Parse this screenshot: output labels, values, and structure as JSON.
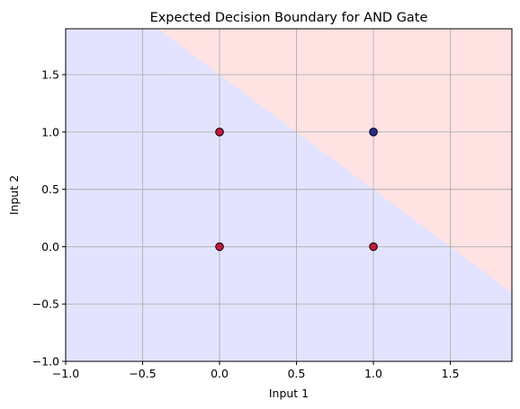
{
  "chart_data": {
    "type": "scatter",
    "title": "Expected Decision Boundary for AND Gate",
    "xlabel": "Input 1",
    "ylabel": "Input 2",
    "xlim": [
      -1.0,
      1.9
    ],
    "ylim": [
      -1.0,
      1.9
    ],
    "xticks": [
      -1.0,
      -0.5,
      0.0,
      0.5,
      1.0,
      1.5
    ],
    "yticks": [
      -1.0,
      -0.5,
      0.0,
      0.5,
      1.0,
      1.5
    ],
    "xtick_labels": [
      "−1.0",
      "−0.5",
      "0.0",
      "0.5",
      "1.0",
      "1.5"
    ],
    "ytick_labels": [
      "−1.0",
      "−0.5",
      "0.0",
      "0.5",
      "1.0",
      "1.5"
    ],
    "grid": true,
    "decision_boundary": {
      "equation": "x + y = 1.5",
      "below_color": "#e3e3ff",
      "above_color": "#ffe2e2"
    },
    "points": [
      {
        "x": 0,
        "y": 0,
        "color": "#c2193c"
      },
      {
        "x": 0,
        "y": 1,
        "color": "#c2193c"
      },
      {
        "x": 1,
        "y": 0,
        "color": "#c2193c"
      },
      {
        "x": 1,
        "y": 1,
        "color": "#2b2b8f"
      }
    ]
  }
}
